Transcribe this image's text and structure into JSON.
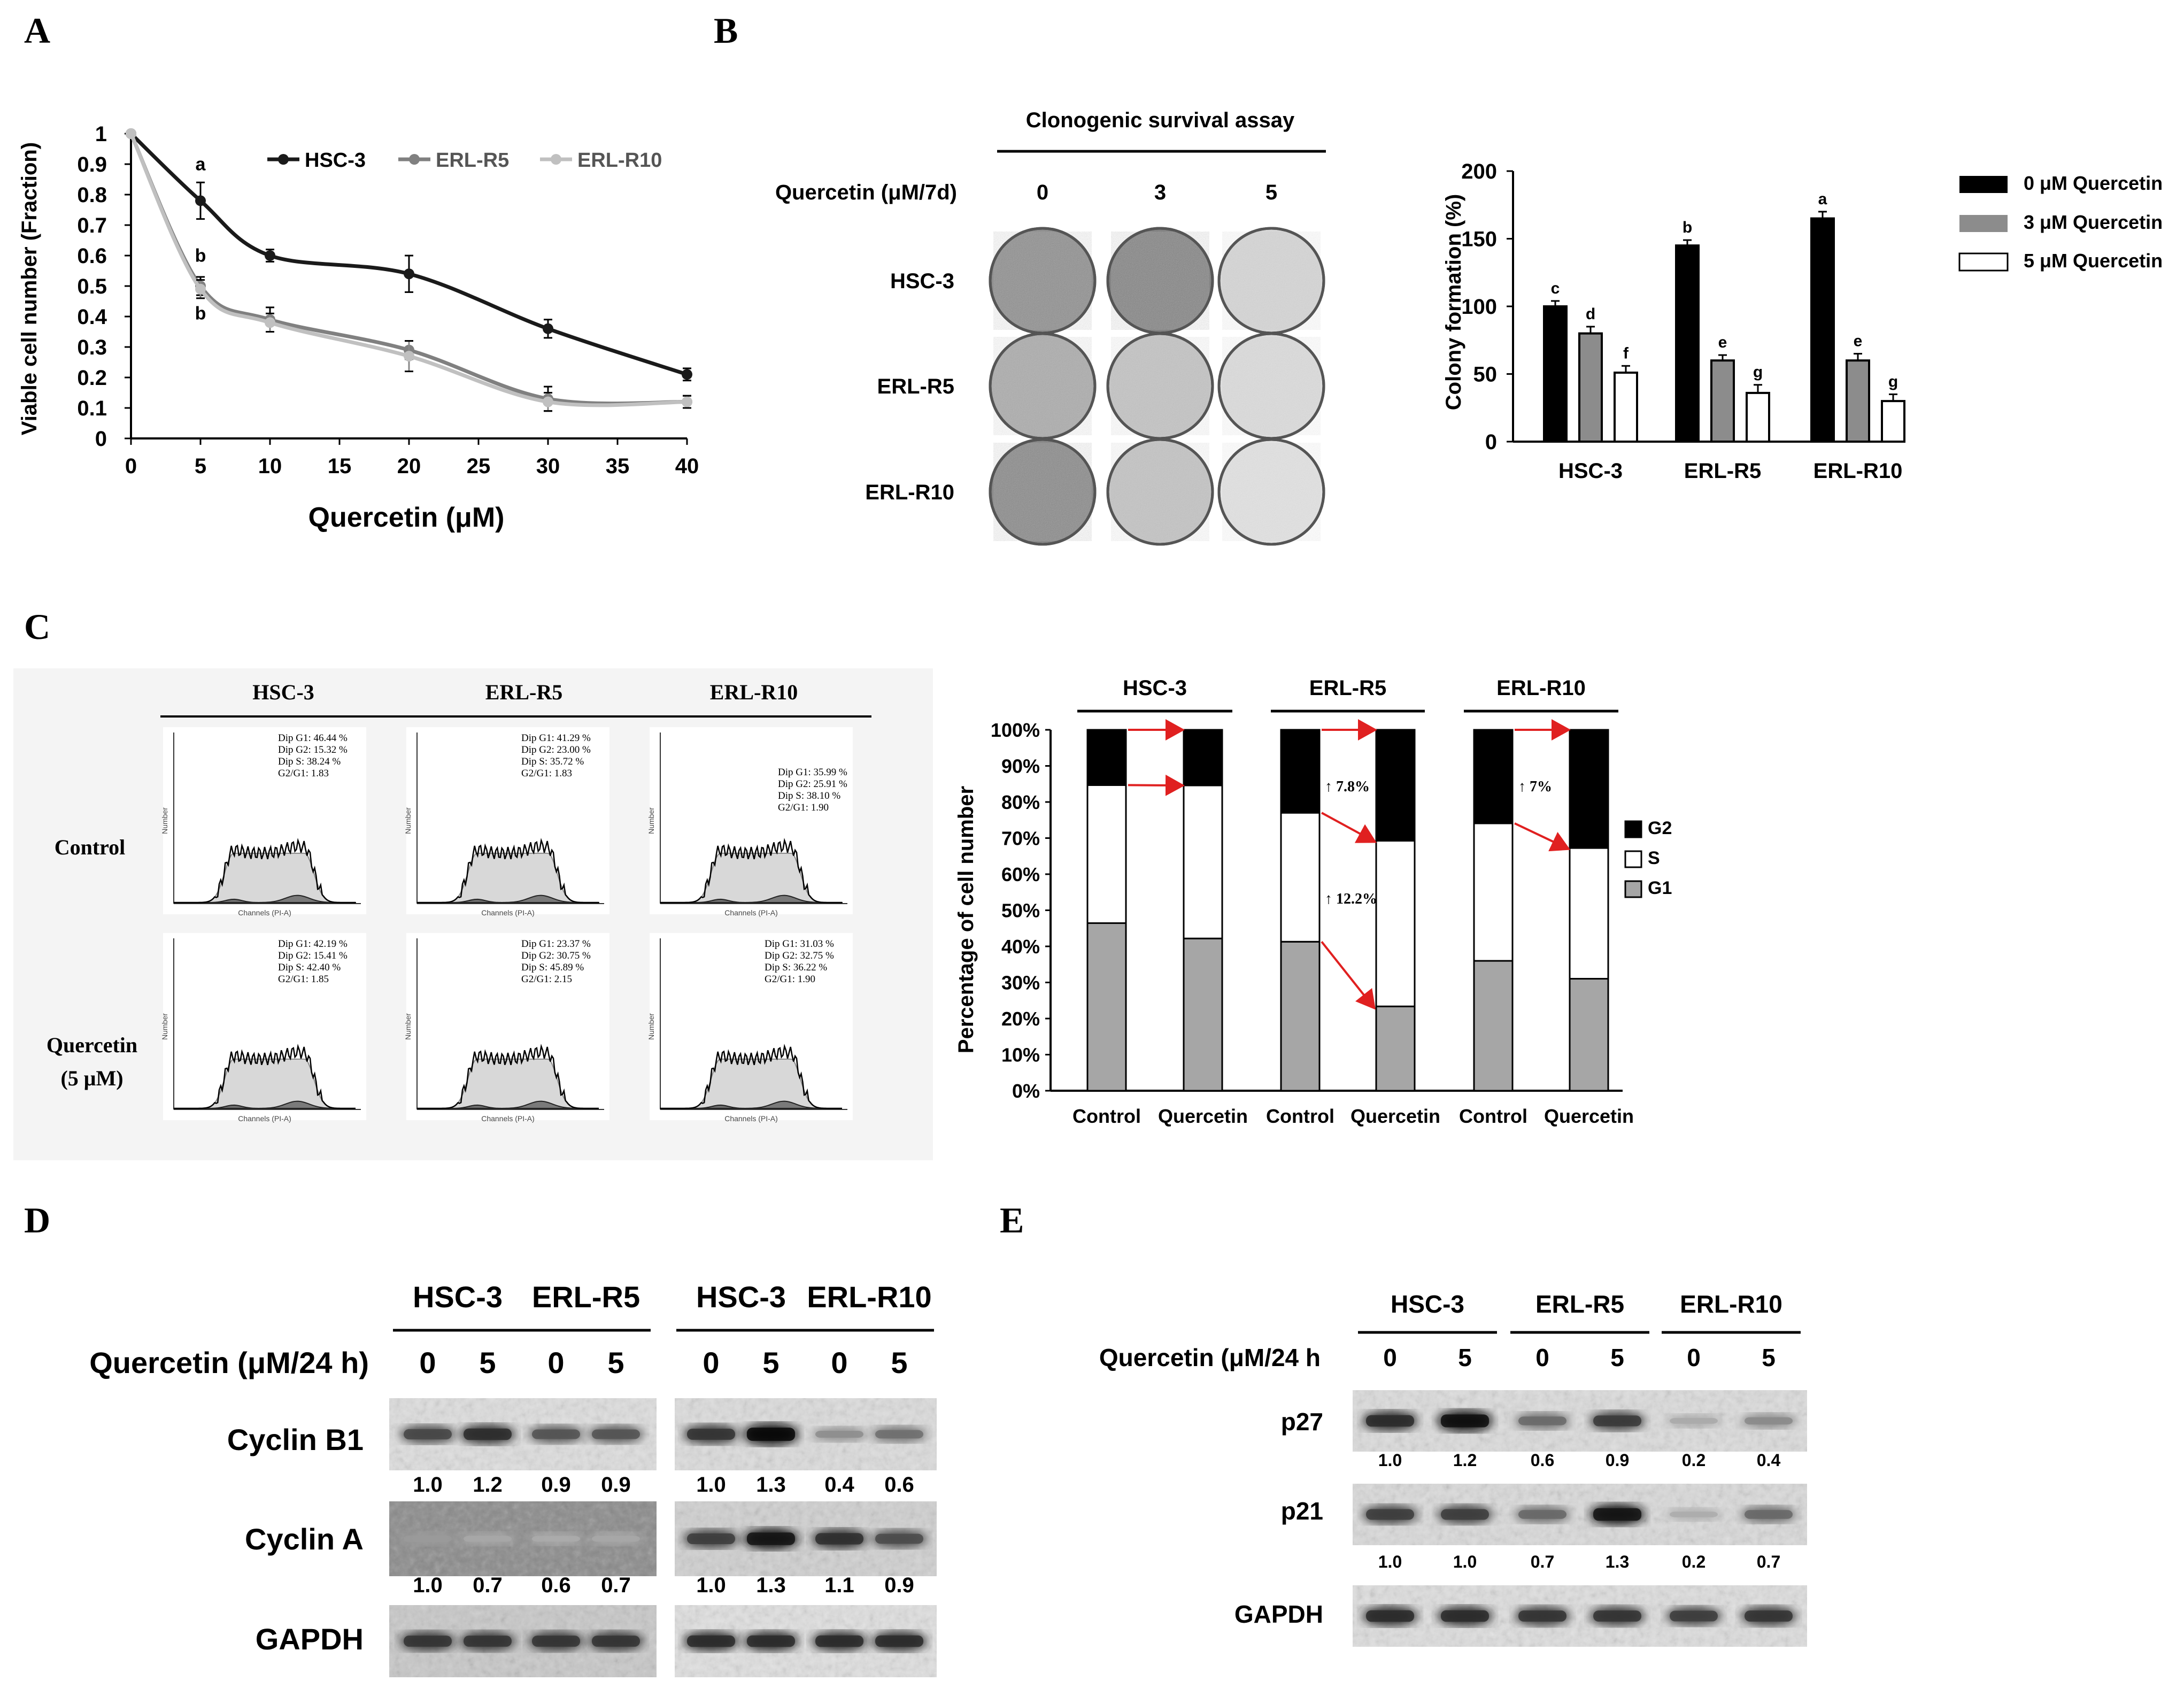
{
  "panels": {
    "A": {
      "letter": "A"
    },
    "B": {
      "letter": "B"
    },
    "C": {
      "letter": "C"
    },
    "D": {
      "letter": "D"
    },
    "E": {
      "letter": "E"
    }
  },
  "colors": {
    "hsc3": "#1a1a1a",
    "erl_r5": "#808080",
    "erl_r10": "#c0c0c0",
    "q0": "#000000",
    "q3": "#8c8c8c",
    "q5": "#ffffff",
    "g2": "#000000",
    "s": "#ffffff",
    "g1": "#a6a6a6",
    "arrow": "#e02020"
  },
  "chart_data": [
    {
      "id": "A",
      "type": "line",
      "title": "",
      "xlabel": "Quercetin (μM)",
      "ylabel": "Viable cell number (Fraction)",
      "xlim": [
        0,
        40
      ],
      "ylim": [
        0,
        1
      ],
      "xticks": [
        "0",
        "5",
        "10",
        "15",
        "20",
        "25",
        "30",
        "35",
        "40"
      ],
      "yticks": [
        "0",
        "0.1",
        "0.2",
        "0.3",
        "0.4",
        "0.5",
        "0.6",
        "0.7",
        "0.8",
        "0.9",
        "1"
      ],
      "legend_placement": "top",
      "series": [
        {
          "name": "HSC-3",
          "x": [
            0,
            5,
            10,
            20,
            30,
            40
          ],
          "y": [
            1.0,
            0.78,
            0.6,
            0.54,
            0.36,
            0.21
          ],
          "err": [
            0,
            0.06,
            0.02,
            0.06,
            0.03,
            0.02
          ]
        },
        {
          "name": "ERL-R5",
          "x": [
            0,
            5,
            10,
            20,
            30,
            40
          ],
          "y": [
            1.0,
            0.5,
            0.39,
            0.29,
            0.13,
            0.12
          ],
          "err": [
            0,
            0.03,
            0.04,
            0.03,
            0.04,
            0.02
          ]
        },
        {
          "name": "ERL-R10",
          "x": [
            0,
            5,
            10,
            20,
            30,
            40
          ],
          "y": [
            1.0,
            0.49,
            0.38,
            0.27,
            0.12,
            0.12
          ],
          "err": [
            0,
            0.03,
            0.03,
            0.05,
            0.03,
            0.02
          ]
        }
      ],
      "annotations": [
        {
          "text": "a",
          "x": 5,
          "y": 0.88
        },
        {
          "text": "b",
          "x": 5,
          "y": 0.58
        },
        {
          "text": "b",
          "x": 5,
          "y": 0.39
        }
      ]
    },
    {
      "id": "B-bar",
      "type": "bar",
      "title": "",
      "xlabel": "",
      "ylabel": "Colony formation (%)",
      "ylim": [
        0,
        200
      ],
      "yticks": [
        "0",
        "50",
        "100",
        "150",
        "200"
      ],
      "categories": [
        "HSC-3",
        "ERL-R5",
        "ERL-R10"
      ],
      "series": [
        {
          "name": "0 μM Quercetin",
          "values": [
            100,
            145,
            165
          ],
          "err": [
            4,
            4,
            5
          ],
          "letters": [
            "c",
            "b",
            "a"
          ]
        },
        {
          "name": "3 μM Quercetin",
          "values": [
            80,
            60,
            60
          ],
          "err": [
            5,
            4,
            5
          ],
          "letters": [
            "d",
            "e",
            "e"
          ]
        },
        {
          "name": "5 μM Quercetin",
          "values": [
            51,
            36,
            30
          ],
          "err": [
            5,
            6,
            5
          ],
          "letters": [
            "f",
            "g",
            "g"
          ]
        }
      ],
      "legend_placement": "right"
    },
    {
      "id": "C-stacked",
      "type": "bar",
      "stacked": true,
      "title": "",
      "xlabel": "",
      "ylabel": "Percentage of cell number",
      "ylim": [
        0,
        100
      ],
      "yticks": [
        "0%",
        "10%",
        "20%",
        "30%",
        "40%",
        "50%",
        "60%",
        "70%",
        "80%",
        "90%",
        "100%"
      ],
      "groups": [
        "HSC-3",
        "ERL-R5",
        "ERL-R10"
      ],
      "categories": [
        "Control",
        "Quercetin",
        "Control",
        "Quercetin",
        "Control",
        "Quercetin"
      ],
      "series": [
        {
          "name": "G1",
          "values": [
            46.44,
            42.19,
            41.29,
            23.37,
            35.99,
            31.03
          ]
        },
        {
          "name": "S",
          "values": [
            38.24,
            42.4,
            35.72,
            45.89,
            38.1,
            36.22
          ]
        },
        {
          "name": "G2",
          "values": [
            15.32,
            15.41,
            23.0,
            30.75,
            25.91,
            32.75
          ]
        }
      ],
      "annotations": [
        "↑ 7.8%",
        "↑ 12.2%",
        "↑ 7%"
      ],
      "legend_placement": "right"
    }
  ],
  "panelB": {
    "header": "Clonogenic survival assay",
    "treatment_label": "Quercetin (μM/7d)",
    "doses": [
      "0",
      "3",
      "5"
    ],
    "rows": [
      "HSC-3",
      "ERL-R5",
      "ERL-R10"
    ],
    "legend": [
      "0 μM Quercetin",
      "3 μM Quercetin",
      "5 μM Quercetin"
    ]
  },
  "panelC": {
    "cells": [
      "HSC-3",
      "ERL-R5",
      "ERL-R10"
    ],
    "conditions": [
      "Control",
      "Quercetin",
      "(5 μM)"
    ],
    "axis_x": "Channels (PI-A)",
    "axis_y": "Number",
    "stats": [
      [
        [
          "Dip G1: 46.44 %",
          "Dip G2: 15.32 %",
          "Dip S: 38.24 %",
          "G2/G1: 1.83"
        ],
        [
          "Dip G1: 41.29 %",
          "Dip G2: 23.00 %",
          "Dip S: 35.72 %",
          "G2/G1: 1.83"
        ],
        [
          "Dip G1: 35.99 %",
          "Dip G2: 25.91 %",
          "Dip S: 38.10 %",
          "G2/G1: 1.90"
        ]
      ],
      [
        [
          "Dip G1: 42.19 %",
          "Dip G2: 15.41 %",
          "Dip S: 42.40 %",
          "G2/G1: 1.85"
        ],
        [
          "Dip G1: 23.37 %",
          "Dip G2: 30.75 %",
          "Dip S: 45.89 %",
          "G2/G1: 2.15"
        ],
        [
          "Dip G1: 31.03 %",
          "Dip G2: 32.75 %",
          "Dip S: 36.22 %",
          "G2/G1: 1.90"
        ]
      ]
    ],
    "legend": [
      "G2",
      "S",
      "G1"
    ]
  },
  "panelD": {
    "treatment_label": "Quercetin (μM/24 h)",
    "left_groups": [
      "HSC-3",
      "ERL-R5"
    ],
    "right_groups": [
      "HSC-3",
      "ERL-R10"
    ],
    "lanes": [
      "0",
      "5",
      "0",
      "5",
      "0",
      "5",
      "0",
      "5"
    ],
    "proteins": [
      "Cyclin B1",
      "Cyclin A",
      "GAPDH"
    ],
    "quant": {
      "cyclin_b1": [
        "1.0",
        "1.2",
        "0.9",
        "0.9",
        "1.0",
        "1.3",
        "0.4",
        "0.6"
      ],
      "cyclin_a": [
        "1.0",
        "0.7",
        "0.6",
        "0.7",
        "1.0",
        "1.3",
        "1.1",
        "0.9"
      ]
    }
  },
  "panelE": {
    "treatment_label": "Quercetin (μM/24 h",
    "groups": [
      "HSC-3",
      "ERL-R5",
      "ERL-R10"
    ],
    "lanes": [
      "0",
      "5",
      "0",
      "5",
      "0",
      "5"
    ],
    "proteins": [
      "p27",
      "p21",
      "GAPDH"
    ],
    "quant": {
      "p27": [
        "1.0",
        "1.2",
        "0.6",
        "0.9",
        "0.2",
        "0.4"
      ],
      "p21": [
        "1.0",
        "1.0",
        "0.7",
        "1.3",
        "0.2",
        "0.7"
      ]
    }
  }
}
